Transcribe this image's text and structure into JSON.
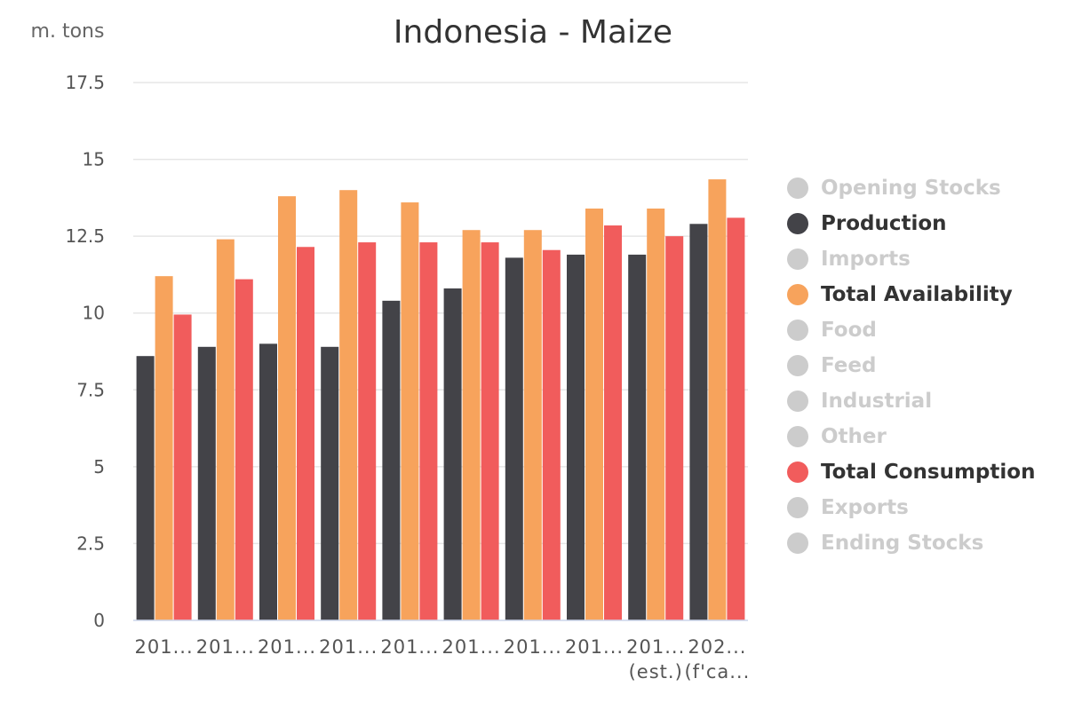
{
  "chart_data": {
    "type": "bar",
    "title": "Indonesia - Maize",
    "unit_label": "m. tons",
    "ylim": [
      0,
      17.5
    ],
    "yticks": [
      "0",
      "2.5",
      "5",
      "7.5",
      "10",
      "12.5",
      "15",
      "17.5"
    ],
    "ytick_values": [
      0,
      2.5,
      5,
      7.5,
      10,
      12.5,
      15,
      17.5
    ],
    "grid": true,
    "legend_position": "right",
    "categories": [
      {
        "line1": "201...",
        "line2": ""
      },
      {
        "line1": "201...",
        "line2": ""
      },
      {
        "line1": "201...",
        "line2": ""
      },
      {
        "line1": "201...",
        "line2": ""
      },
      {
        "line1": "201...",
        "line2": ""
      },
      {
        "line1": "201...",
        "line2": ""
      },
      {
        "line1": "201...",
        "line2": ""
      },
      {
        "line1": "201...",
        "line2": ""
      },
      {
        "line1": "201...",
        "line2": "(est.)"
      },
      {
        "line1": "202...",
        "line2": "(f'ca..."
      }
    ],
    "series": [
      {
        "name": "Production",
        "color": "#434348",
        "values": [
          8.6,
          8.9,
          9.0,
          8.9,
          10.4,
          10.8,
          11.8,
          11.9,
          11.9,
          12.9
        ]
      },
      {
        "name": "Total Availability",
        "color": "#f7a35c",
        "values": [
          11.2,
          12.4,
          13.8,
          14.0,
          13.6,
          12.7,
          12.7,
          13.4,
          13.4,
          14.35
        ]
      },
      {
        "name": "Total Consumption",
        "color": "#f15c5c",
        "values": [
          9.95,
          11.1,
          12.15,
          12.3,
          12.3,
          12.3,
          12.05,
          12.85,
          12.5,
          13.1
        ]
      }
    ]
  },
  "legend": {
    "items": [
      {
        "label": "Opening Stocks",
        "color": "#cccccc",
        "active": false
      },
      {
        "label": "Production",
        "color": "#434348",
        "active": true
      },
      {
        "label": "Imports",
        "color": "#cccccc",
        "active": false
      },
      {
        "label": "Total Availability",
        "color": "#f7a35c",
        "active": true
      },
      {
        "label": "Food",
        "color": "#cccccc",
        "active": false
      },
      {
        "label": "Feed",
        "color": "#cccccc",
        "active": false
      },
      {
        "label": "Industrial",
        "color": "#cccccc",
        "active": false
      },
      {
        "label": "Other",
        "color": "#cccccc",
        "active": false
      },
      {
        "label": "Total Consumption",
        "color": "#f15c5c",
        "active": true
      },
      {
        "label": "Exports",
        "color": "#cccccc",
        "active": false
      },
      {
        "label": "Ending Stocks",
        "color": "#cccccc",
        "active": false
      }
    ],
    "active_text_color": "#333333",
    "inactive_text_color": "#cccccc"
  }
}
